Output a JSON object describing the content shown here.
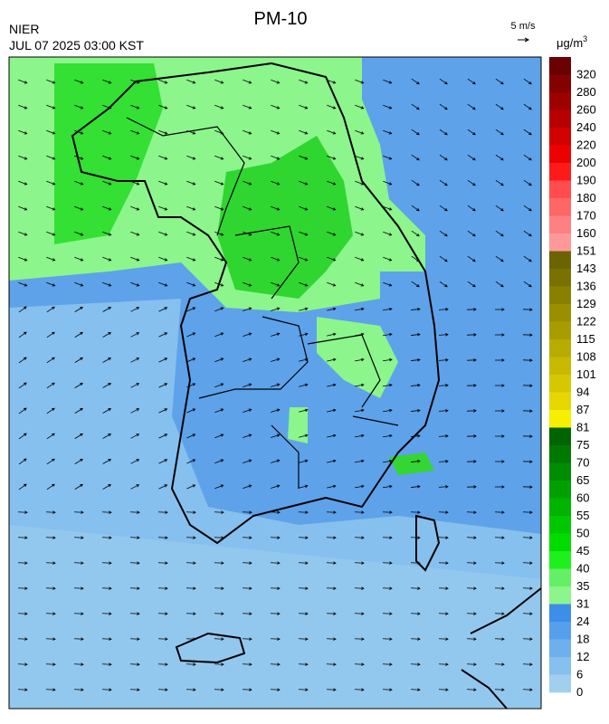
{
  "header": {
    "title": "PM-10",
    "agency": "NIER",
    "datetime": "JUL 07 2025 03:00 KST",
    "wind_scale": "5 m/s",
    "unit": "μg/m",
    "unit_superscript": "3"
  },
  "legend": [
    {
      "value": 320,
      "color": "#6b0000"
    },
    {
      "value": 280,
      "color": "#850000"
    },
    {
      "value": 260,
      "color": "#9e0000"
    },
    {
      "value": 240,
      "color": "#b80000"
    },
    {
      "value": 220,
      "color": "#d20000"
    },
    {
      "value": 200,
      "color": "#ec0000"
    },
    {
      "value": 190,
      "color": "#ff1a1a"
    },
    {
      "value": 180,
      "color": "#ff4d4d"
    },
    {
      "value": 170,
      "color": "#ff6666"
    },
    {
      "value": 160,
      "color": "#ff8080"
    },
    {
      "value": 151,
      "color": "#ff9999"
    },
    {
      "value": 143,
      "color": "#6b6400"
    },
    {
      "value": 136,
      "color": "#7a7200"
    },
    {
      "value": 129,
      "color": "#8a8000"
    },
    {
      "value": 122,
      "color": "#998f00"
    },
    {
      "value": 115,
      "color": "#a89d00"
    },
    {
      "value": 108,
      "color": "#b8ac00"
    },
    {
      "value": 101,
      "color": "#c7ba00"
    },
    {
      "value": 94,
      "color": "#d6c800"
    },
    {
      "value": 87,
      "color": "#e6d700"
    },
    {
      "value": 81,
      "color": "#f5f000"
    },
    {
      "value": 75,
      "color": "#006400"
    },
    {
      "value": 70,
      "color": "#007800"
    },
    {
      "value": 65,
      "color": "#008c00"
    },
    {
      "value": 60,
      "color": "#00a000"
    },
    {
      "value": 55,
      "color": "#00b400"
    },
    {
      "value": 50,
      "color": "#00c800"
    },
    {
      "value": 45,
      "color": "#00dc00"
    },
    {
      "value": 40,
      "color": "#1ef01e"
    },
    {
      "value": 35,
      "color": "#64f064"
    },
    {
      "value": 31,
      "color": "#8cf58c"
    },
    {
      "value": 24,
      "color": "#3c8ee8"
    },
    {
      "value": 18,
      "color": "#55a0ec"
    },
    {
      "value": 12,
      "color": "#6eb0ee"
    },
    {
      "value": 6,
      "color": "#86c0ee"
    },
    {
      "value": 0,
      "color": "#a0d0ee"
    }
  ]
}
